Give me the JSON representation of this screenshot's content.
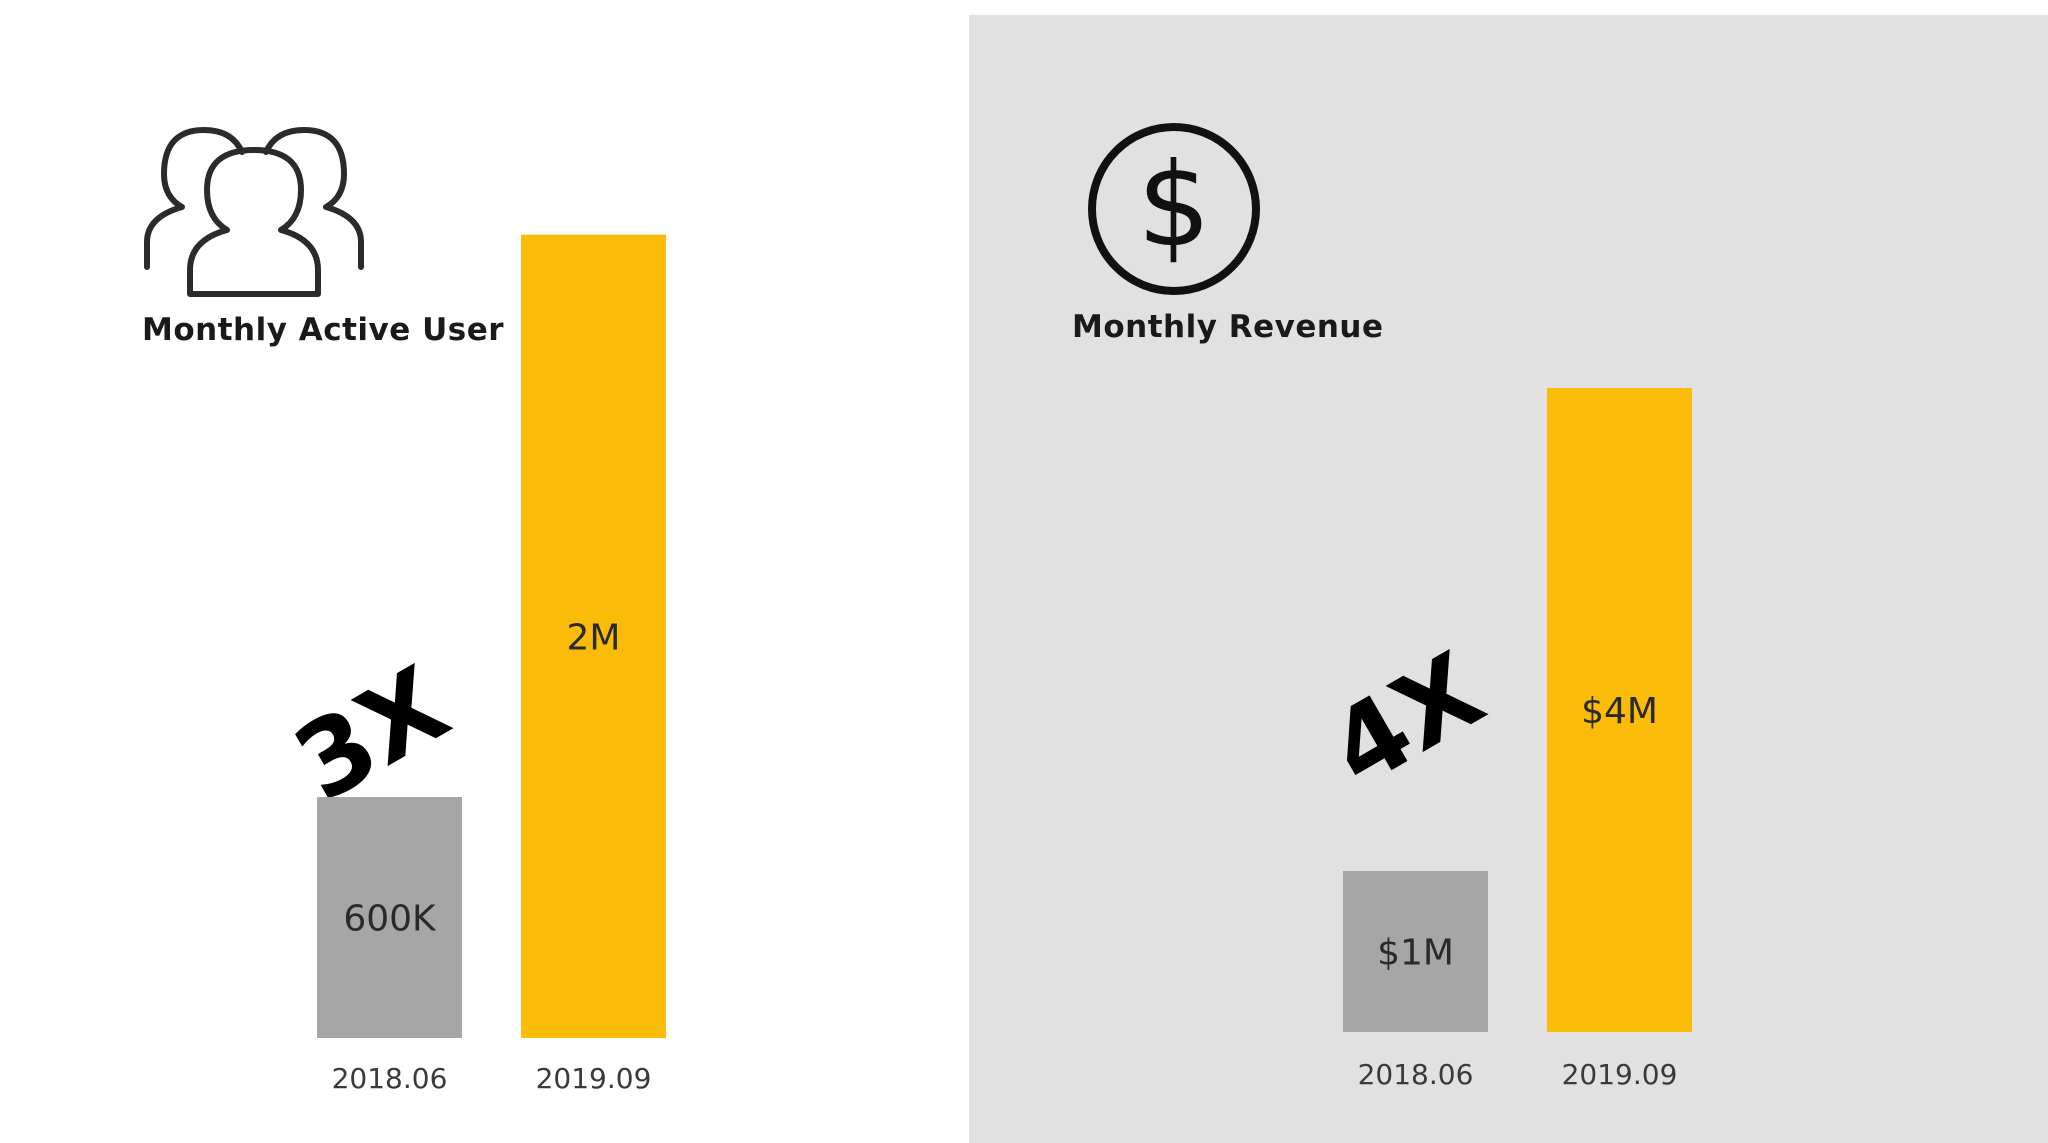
{
  "colors": {
    "old_bar": "#a6a6a6",
    "new_bar": "#fbbc09",
    "right_background": "#e1e1e1"
  },
  "users_panel": {
    "icon": "users-icon",
    "title": "Monthly Active User",
    "multiplier": "3X"
  },
  "revenue_panel": {
    "icon": "dollar-circle-icon",
    "title": "Monthly Revenue",
    "multiplier": "4X"
  },
  "chart_data": [
    {
      "type": "bar",
      "title": "Monthly Active User",
      "categories": [
        "2018.06",
        "2019.09"
      ],
      "values": [
        600000,
        2000000
      ],
      "data_labels": [
        "600K",
        "2M"
      ],
      "annotation": "3X"
    },
    {
      "type": "bar",
      "title": "Monthly Revenue",
      "categories": [
        "2018.06",
        "2019.09"
      ],
      "values": [
        1000000,
        4000000
      ],
      "data_labels": [
        "$1M",
        "$4M"
      ],
      "annotation": "4X"
    }
  ]
}
